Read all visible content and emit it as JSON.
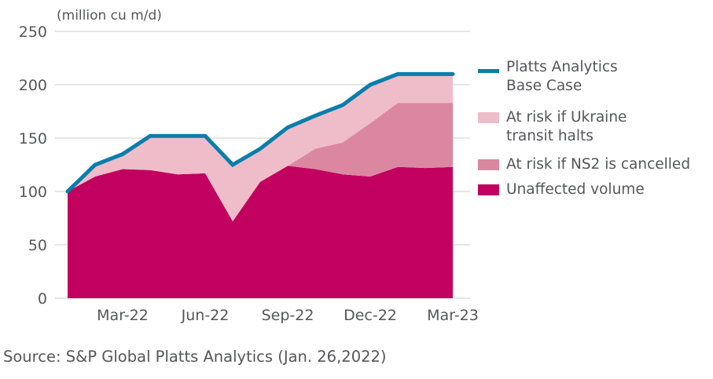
{
  "chart_data": {
    "type": "area",
    "stacked": true,
    "unit_label": "(million cu m/d)",
    "x": [
      "Jan-22",
      "Feb-22",
      "Mar-22",
      "Apr-22",
      "May-22",
      "Jun-22",
      "Jul-22",
      "Aug-22",
      "Sep-22",
      "Oct-22",
      "Nov-22",
      "Dec-22",
      "Jan-23",
      "Feb-23",
      "Mar-23"
    ],
    "x_tick_labels": [
      "Mar-22",
      "Jun-22",
      "Sep-22",
      "Dec-22",
      "Mar-23"
    ],
    "x_tick_indices": [
      2,
      5,
      8,
      11,
      14
    ],
    "ylim": [
      0,
      250
    ],
    "y_ticks": [
      0,
      50,
      100,
      150,
      200,
      250
    ],
    "grid": true,
    "legend_position": "right",
    "series": [
      {
        "name": "Unaffected volume",
        "kind": "area",
        "color": "#c2005f",
        "values": [
          100,
          114,
          121,
          120,
          116,
          117,
          72,
          109,
          124,
          121,
          116,
          114,
          123,
          122,
          123
        ]
      },
      {
        "name": "At risk if NS2 is cancelled",
        "kind": "area",
        "color": "#dc87a2",
        "values": [
          0,
          0,
          0,
          0,
          0,
          0,
          0,
          0,
          0,
          19,
          30,
          50,
          60,
          61,
          60
        ]
      },
      {
        "name": "At risk if Ukraine transit halts",
        "kind": "area",
        "color": "#eebdc9",
        "values": [
          0,
          11,
          14,
          32,
          36,
          35,
          53,
          31,
          36,
          31,
          35,
          36,
          27,
          27,
          27
        ]
      },
      {
        "name": "Platts Analytics Base Case",
        "kind": "line",
        "color": "#0a7eaa",
        "values": [
          100,
          125,
          135,
          152,
          152,
          152,
          125,
          140,
          160,
          171,
          181,
          200,
          210,
          210,
          210
        ]
      }
    ]
  },
  "legend": [
    {
      "label": "Platts Analytics\nBase Case",
      "kind": "line",
      "color": "#0a7eaa"
    },
    {
      "label": "At risk if Ukraine\ntransit halts",
      "kind": "box",
      "color": "#eebdc9"
    },
    {
      "label": "At risk if NS2 is cancelled",
      "kind": "box",
      "color": "#dc87a2"
    },
    {
      "label": "Unaffected volume",
      "kind": "box",
      "color": "#c2005f"
    }
  ],
  "source": "Source: S&P Global Platts Analytics (Jan. 26,2022)"
}
